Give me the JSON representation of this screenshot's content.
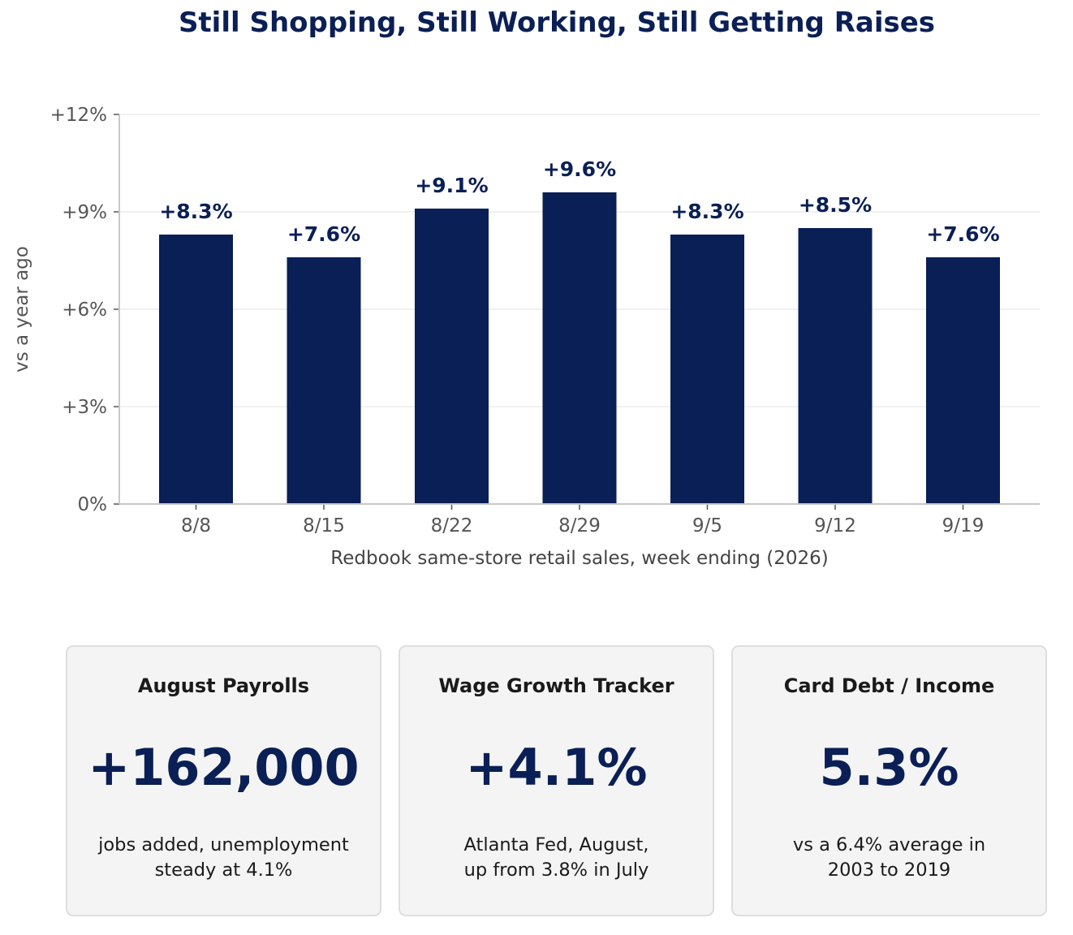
{
  "title": "Still Shopping, Still Working, Still Getting Raises",
  "chart_data": {
    "type": "bar",
    "categories": [
      "8/8",
      "8/15",
      "8/22",
      "8/29",
      "9/5",
      "9/12",
      "9/19"
    ],
    "values": [
      8.3,
      7.6,
      9.1,
      9.6,
      8.3,
      8.5,
      7.6
    ],
    "data_labels": [
      "+8.3%",
      "+7.6%",
      "+9.1%",
      "+9.6%",
      "+8.3%",
      "+8.5%",
      "+7.6%"
    ],
    "xlabel": "Redbook same-store retail sales, week ending (2026)",
    "ylabel": "vs a year ago",
    "ylim": [
      0,
      12
    ],
    "yticks": [
      0,
      3,
      6,
      9,
      12
    ],
    "ytick_labels": [
      "0%",
      "+3%",
      "+6%",
      "+9%",
      "+12%"
    ],
    "grid": true,
    "bar_color": "#0a1f55"
  },
  "cards": [
    {
      "title": "August Payrolls",
      "value": "+162,000",
      "note": "jobs added, unemployment\nsteady at 4.1%"
    },
    {
      "title": "Wage Growth Tracker",
      "value": "+4.1%",
      "note": "Atlanta Fed, August,\nup from 3.8% in July"
    },
    {
      "title": "Card Debt / Income",
      "value": "5.3%",
      "note": "vs a 6.4% average in\n2003 to 2019"
    }
  ]
}
